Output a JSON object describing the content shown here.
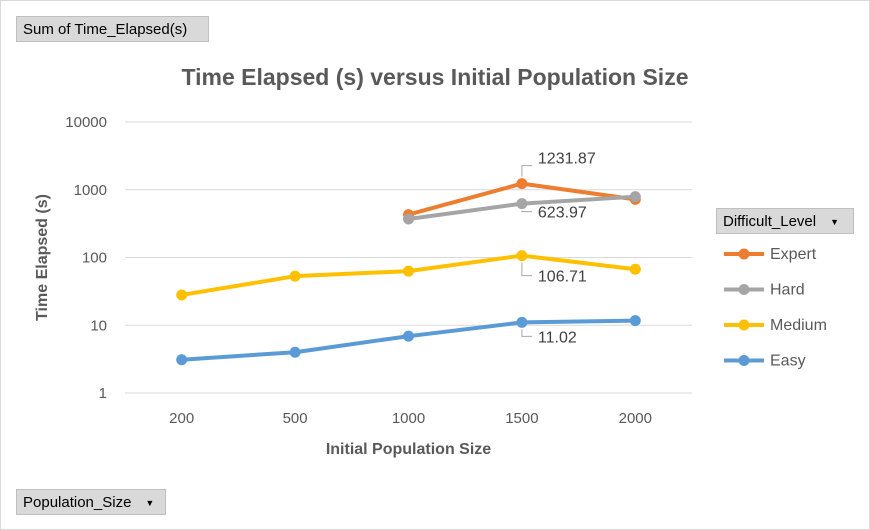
{
  "pivot": {
    "value_field": "Sum of Time_Elapsed(s)",
    "axis_field": "Population_Size",
    "legend_field": "Difficult_Level"
  },
  "chart_data": {
    "type": "line",
    "title": "Time Elapsed (s) versus Initial Population Size",
    "xlabel": "Initial Population  Size",
    "ylabel": "Time Elapsed (s)",
    "yscale": "log",
    "ylim": [
      1,
      10000
    ],
    "yticks": [
      "1",
      "10",
      "100",
      "1000",
      "10000"
    ],
    "categories": [
      "200",
      "500",
      "1000",
      "1500",
      "2000"
    ],
    "series": [
      {
        "name": "Expert",
        "color": "#ed7d31",
        "values": [
          null,
          null,
          430,
          1231.87,
          720
        ]
      },
      {
        "name": "Hard",
        "color": "#a5a5a5",
        "values": [
          null,
          null,
          370,
          623.97,
          790
        ]
      },
      {
        "name": "Medium",
        "color": "#ffc000",
        "values": [
          28,
          53,
          63,
          106.71,
          67
        ]
      },
      {
        "name": "Easy",
        "color": "#5b9bd5",
        "values": [
          3.1,
          4.0,
          6.9,
          11.02,
          11.7
        ]
      }
    ],
    "data_labels": [
      {
        "series": "Expert",
        "category": "1500",
        "text": "1231.87"
      },
      {
        "series": "Hard",
        "category": "1500",
        "text": "623.97"
      },
      {
        "series": "Medium",
        "category": "1500",
        "text": "106.71"
      },
      {
        "series": "Easy",
        "category": "1500",
        "text": "11.02"
      }
    ],
    "legend_position": "right"
  }
}
